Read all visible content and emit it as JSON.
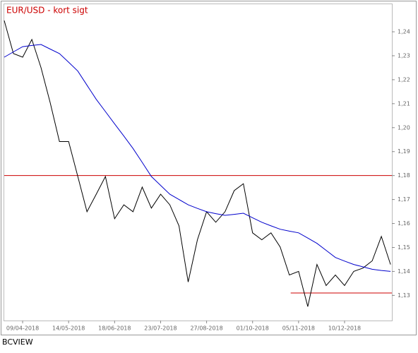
{
  "chart_data": {
    "type": "line",
    "title": "EUR/USD - kort sigt",
    "source": "BCVIEW",
    "x": [
      "2018-03-26",
      "2018-04-02",
      "2018-04-09",
      "2018-04-16",
      "2018-04-23",
      "2018-04-30",
      "2018-05-07",
      "2018-05-14",
      "2018-05-21",
      "2018-05-28",
      "2018-06-04",
      "2018-06-11",
      "2018-06-18",
      "2018-06-25",
      "2018-07-02",
      "2018-07-09",
      "2018-07-16",
      "2018-07-23",
      "2018-07-30",
      "2018-08-06",
      "2018-08-13",
      "2018-08-20",
      "2018-08-27",
      "2018-09-03",
      "2018-09-10",
      "2018-09-17",
      "2018-09-24",
      "2018-10-01",
      "2018-10-08",
      "2018-10-15",
      "2018-10-22",
      "2018-10-29",
      "2018-11-05",
      "2018-11-12",
      "2018-11-19",
      "2018-11-26",
      "2018-12-03",
      "2018-12-10",
      "2018-12-17",
      "2018-12-24",
      "2018-12-31",
      "2019-01-07",
      "2019-01-14"
    ],
    "series": [
      {
        "color": "#000000",
        "values": [
          1.2447,
          1.2309,
          1.2294,
          1.2368,
          1.225,
          1.2104,
          1.1942,
          1.1942,
          1.1796,
          1.1649,
          1.1722,
          1.1796,
          1.162,
          1.1678,
          1.1649,
          1.1752,
          1.1664,
          1.1722,
          1.1678,
          1.159,
          1.1356,
          1.1532,
          1.1649,
          1.1605,
          1.1649,
          1.1737,
          1.1766,
          1.1561,
          1.1532,
          1.1561,
          1.1502,
          1.1385,
          1.14,
          1.1253,
          1.1429,
          1.1341,
          1.1385,
          1.1341,
          1.14,
          1.1414,
          1.1444,
          1.1546,
          1.1429
        ]
      },
      {
        "color": "#0000cc",
        "values": [
          1.2294,
          1.2316,
          1.2338,
          1.2343,
          1.2347,
          1.2328,
          1.2309,
          1.2273,
          1.2236,
          1.2177,
          1.2118,
          1.2067,
          1.2016,
          1.1965,
          1.1913,
          1.1855,
          1.1796,
          1.1759,
          1.1722,
          1.17,
          1.1678,
          1.1663,
          1.1649,
          1.1641,
          1.1634,
          1.1638,
          1.1643,
          1.1624,
          1.1605,
          1.159,
          1.1576,
          1.1568,
          1.1561,
          1.1539,
          1.1517,
          1.1488,
          1.1458,
          1.1443,
          1.1429,
          1.1419,
          1.1409,
          1.1404,
          1.14
        ]
      }
    ],
    "hlines": [
      {
        "value": 1.18,
        "color": "#cc0000"
      },
      {
        "value": 1.131,
        "from": "2018-10-30",
        "color": "#cc0000"
      }
    ],
    "xlim": [
      "2018-03-26",
      "2019-01-15"
    ],
    "xticks": [
      {
        "value": "2018-04-09",
        "label": "09/04-2018"
      },
      {
        "value": "2018-05-14",
        "label": "14/05-2018"
      },
      {
        "value": "2018-06-18",
        "label": "18/06-2018"
      },
      {
        "value": "2018-07-23",
        "label": "23/07-2018"
      },
      {
        "value": "2018-08-27",
        "label": "27/08-2018"
      },
      {
        "value": "2018-10-01",
        "label": "01/10-2018"
      },
      {
        "value": "2018-11-05",
        "label": "05/11-2018"
      },
      {
        "value": "2018-12-10",
        "label": "10/12-2018"
      }
    ],
    "ylim": [
      1.1195,
      1.2515
    ],
    "yticks": [
      {
        "value": 1.13,
        "label": "1,13"
      },
      {
        "value": 1.14,
        "label": "1,14"
      },
      {
        "value": 1.15,
        "label": "1,15"
      },
      {
        "value": 1.16,
        "label": "1,16"
      },
      {
        "value": 1.17,
        "label": "1,17"
      },
      {
        "value": 1.18,
        "label": "1,18"
      },
      {
        "value": 1.19,
        "label": "1,19"
      },
      {
        "value": 1.2,
        "label": "1,20"
      },
      {
        "value": 1.21,
        "label": "1,21"
      },
      {
        "value": 1.22,
        "label": "1,22"
      },
      {
        "value": 1.23,
        "label": "1,23"
      },
      {
        "value": 1.24,
        "label": "1,24"
      }
    ],
    "yaxis_side": "right"
  }
}
